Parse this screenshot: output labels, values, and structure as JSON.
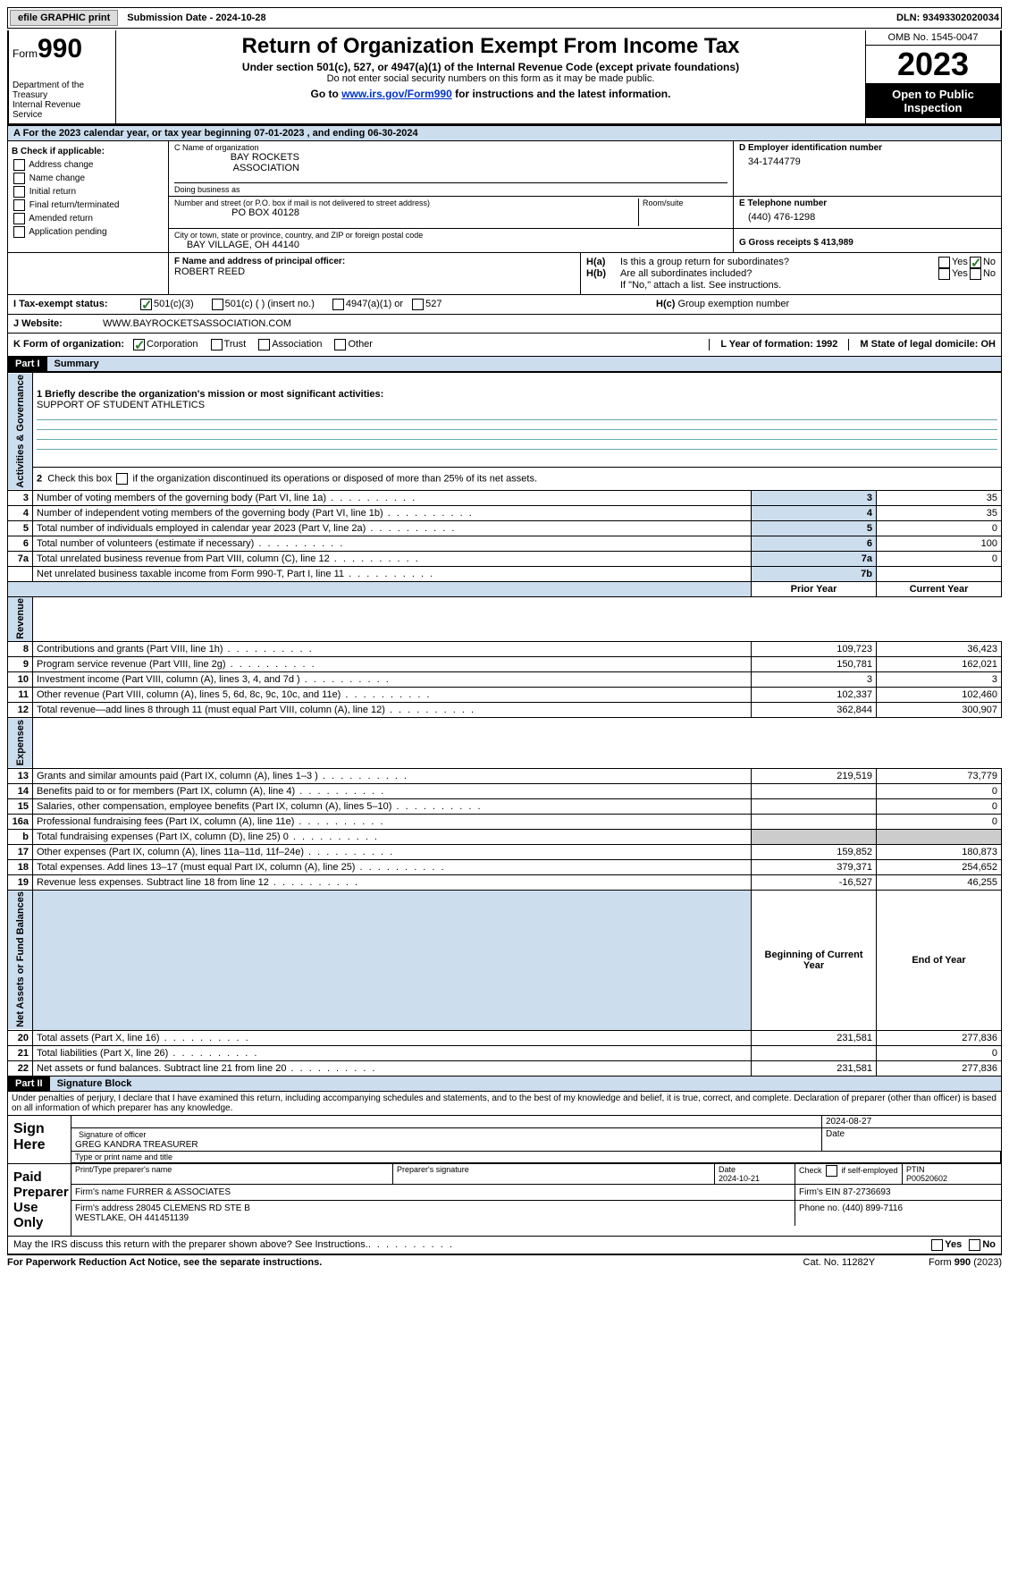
{
  "topbar": {
    "efile_label": "efile GRAPHIC print",
    "submission_label": "Submission Date - 2024-10-28",
    "dln_label": "DLN: 93493302020034"
  },
  "header": {
    "form_word": "Form",
    "form_no": "990",
    "dept": "Department of the Treasury\nInternal Revenue Service",
    "title": "Return of Organization Exempt From Income Tax",
    "sub1": "Under section 501(c), 527, or 4947(a)(1) of the Internal Revenue Code (except private foundations)",
    "sub2": "Do not enter social security numbers on this form as it may be made public.",
    "sub3_pre": "Go to ",
    "sub3_link": "www.irs.gov/Form990",
    "sub3_post": " for instructions and the latest information.",
    "omb": "OMB No. 1545-0047",
    "year": "2023",
    "open": "Open to Public Inspection"
  },
  "period": {
    "label_a": "A For the 2023 calendar year, or tax year beginning 07-01-2023    , and ending 06-30-2024"
  },
  "boxB": {
    "title": "B Check if applicable:",
    "items": [
      "Address change",
      "Name change",
      "Initial return",
      "Final return/terminated",
      "Amended return",
      "Application pending"
    ]
  },
  "boxC": {
    "name_lbl": "C Name of organization",
    "name": "BAY ROCKETS ASSOCIATION",
    "dba_lbl": "Doing business as",
    "dba": "",
    "street_lbl": "Number and street (or P.O. box if mail is not delivered to street address)",
    "street": "PO BOX 40128",
    "room_lbl": "Room/suite",
    "city_lbl": "City or town, state or province, country, and ZIP or foreign postal code",
    "city": "BAY VILLAGE, OH  44140"
  },
  "boxD": {
    "lbl": "D Employer identification number",
    "val": "34-1744779"
  },
  "boxE": {
    "lbl": "E Telephone number",
    "val": "(440) 476-1298"
  },
  "boxG": {
    "lbl": "G Gross receipts $ 413,989"
  },
  "boxF": {
    "lbl": "F  Name and address of principal officer:",
    "val": "ROBERT REED"
  },
  "boxH": {
    "ha_lbl": "H(a)  Is this a group return for subordinates?",
    "hb_lbl": "H(b)  Are all subordinates included?",
    "hb_note": "If \"No,\" attach a list. See instructions.",
    "hc_lbl": "H(c)  Group exemption number ",
    "yes": "Yes",
    "no": "No"
  },
  "rowI": {
    "lbl": "I    Tax-exempt status:",
    "o1": "501(c)(3)",
    "o2": "501(c) (  ) (insert no.)",
    "o3": "4947(a)(1) or",
    "o4": "527"
  },
  "rowJ": {
    "lbl": "J    Website: ",
    "val": "WWW.BAYROCKETSASSOCIATION.COM"
  },
  "rowK": {
    "lbl": "K Form of organization:",
    "o1": "Corporation",
    "o2": "Trust",
    "o3": "Association",
    "o4": "Other",
    "L": "L Year of formation: 1992",
    "M": "M State of legal domicile: OH"
  },
  "part1": {
    "bar": "Part I",
    "title": "Summary",
    "mission_lbl": "1   Briefly describe the organization's mission or most significant activities:",
    "mission": "SUPPORT OF STUDENT ATHLETICS",
    "line2": "2   Check this box          if the organization discontinued its operations or disposed of more than 25% of its net assets.",
    "vlabels": {
      "gov": "Activities & Governance",
      "rev": "Revenue",
      "exp": "Expenses",
      "net": "Net Assets or Fund Balances"
    },
    "gov_rows": [
      {
        "n": "3",
        "t": "Number of voting members of the governing body (Part VI, line 1a)",
        "k": "3",
        "v": "35"
      },
      {
        "n": "4",
        "t": "Number of independent voting members of the governing body (Part VI, line 1b)",
        "k": "4",
        "v": "35"
      },
      {
        "n": "5",
        "t": "Total number of individuals employed in calendar year 2023 (Part V, line 2a)",
        "k": "5",
        "v": "0"
      },
      {
        "n": "6",
        "t": "Total number of volunteers (estimate if necessary)",
        "k": "6",
        "v": "100"
      },
      {
        "n": "7a",
        "t": "Total unrelated business revenue from Part VIII, column (C), line 12",
        "k": "7a",
        "v": "0"
      },
      {
        "n": "",
        "t": "Net unrelated business taxable income from Form 990-T, Part I, line 11",
        "k": "7b",
        "v": ""
      }
    ],
    "col_hdrs": {
      "prior": "Prior Year",
      "current": "Current Year"
    },
    "rev_rows": [
      {
        "n": "8",
        "t": "Contributions and grants (Part VIII, line 1h)",
        "p": "109,723",
        "c": "36,423"
      },
      {
        "n": "9",
        "t": "Program service revenue (Part VIII, line 2g)",
        "p": "150,781",
        "c": "162,021"
      },
      {
        "n": "10",
        "t": "Investment income (Part VIII, column (A), lines 3, 4, and 7d )",
        "p": "3",
        "c": "3"
      },
      {
        "n": "11",
        "t": "Other revenue (Part VIII, column (A), lines 5, 6d, 8c, 9c, 10c, and 11e)",
        "p": "102,337",
        "c": "102,460"
      },
      {
        "n": "12",
        "t": "Total revenue—add lines 8 through 11 (must equal Part VIII, column (A), line 12)",
        "p": "362,844",
        "c": "300,907"
      }
    ],
    "exp_rows": [
      {
        "n": "13",
        "t": "Grants and similar amounts paid (Part IX, column (A), lines 1–3 )",
        "p": "219,519",
        "c": "73,779"
      },
      {
        "n": "14",
        "t": "Benefits paid to or for members (Part IX, column (A), line 4)",
        "p": "",
        "c": "0"
      },
      {
        "n": "15",
        "t": "Salaries, other compensation, employee benefits (Part IX, column (A), lines 5–10)",
        "p": "",
        "c": "0"
      },
      {
        "n": "16a",
        "t": "Professional fundraising fees (Part IX, column (A), line 11e)",
        "p": "",
        "c": "0"
      },
      {
        "n": "b",
        "t": "Total fundraising expenses (Part IX, column (D), line 25) 0",
        "p": "__shade__",
        "c": "__shade__"
      },
      {
        "n": "17",
        "t": "Other expenses (Part IX, column (A), lines 11a–11d, 11f–24e)",
        "p": "159,852",
        "c": "180,873"
      },
      {
        "n": "18",
        "t": "Total expenses. Add lines 13–17 (must equal Part IX, column (A), line 25)",
        "p": "379,371",
        "c": "254,652"
      },
      {
        "n": "19",
        "t": "Revenue less expenses. Subtract line 18 from line 12",
        "p": "-16,527",
        "c": "46,255"
      }
    ],
    "net_hdrs": {
      "b": "Beginning of Current Year",
      "e": "End of Year"
    },
    "net_rows": [
      {
        "n": "20",
        "t": "Total assets (Part X, line 16)",
        "p": "231,581",
        "c": "277,836"
      },
      {
        "n": "21",
        "t": "Total liabilities (Part X, line 26)",
        "p": "",
        "c": "0"
      },
      {
        "n": "22",
        "t": "Net assets or fund balances. Subtract line 21 from line 20",
        "p": "231,581",
        "c": "277,836"
      }
    ]
  },
  "part2": {
    "bar": "Part II",
    "title": "Signature Block",
    "perjury": "Under penalties of perjury, I declare that I have examined this return, including accompanying schedules and statements, and to the best of my knowledge and belief, it is true, correct, and complete. Declaration of preparer (other than officer) is based on all information of which preparer has any knowledge.",
    "sign_here": "Sign Here",
    "sig_of_officer": "Signature of officer",
    "officer_name": "GREG KANDRA  TREASURER",
    "type_name": "Type or print name and title",
    "date_lbl": "Date",
    "sig_date": "2024-08-27",
    "paid": "Paid Preparer Use Only",
    "prep_name_lbl": "Print/Type preparer's name",
    "prep_sig_lbl": "Preparer's signature",
    "prep_date_lbl": "Date",
    "prep_date": "2024-10-21",
    "self_emp": "Check         if self-employed",
    "ptin_lbl": "PTIN",
    "ptin": "P00520602",
    "firm_name_lbl": "Firm's name     ",
    "firm_name": "FURRER & ASSOCIATES",
    "firm_ein_lbl": "Firm's EIN  87-2736693",
    "firm_addr_lbl": "Firm's address ",
    "firm_addr": "28045 CLEMENS RD STE B\nWESTLAKE, OH  441451139",
    "phone_lbl": "Phone no. (440) 899-7116",
    "may_irs": "May the IRS discuss this return with the preparer shown above? See Instructions.",
    "yes": "Yes",
    "no": "No"
  },
  "footer": {
    "pra": "For Paperwork Reduction Act Notice, see the separate instructions.",
    "cat": "Cat. No. 11282Y",
    "form": "Form 990 (2023)"
  }
}
